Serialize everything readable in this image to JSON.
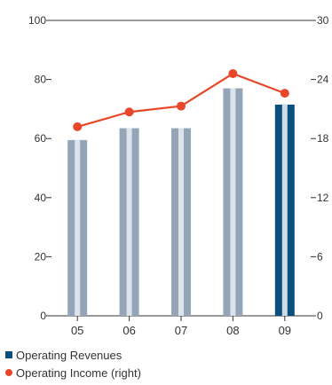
{
  "chart_data": {
    "type": "bar",
    "categories": [
      "05",
      "06",
      "07",
      "08",
      "09"
    ],
    "series": [
      {
        "name": "Operating Revenues",
        "axis": "left",
        "type": "bar",
        "values": [
          59.5,
          63.5,
          63.5,
          77,
          71.5
        ]
      },
      {
        "name": "Operating Income (right)",
        "axis": "right",
        "type": "line",
        "values": [
          19.2,
          20.7,
          21.3,
          24.6,
          22.6
        ]
      }
    ],
    "y_left": {
      "ticks": [
        "0",
        "20",
        "40",
        "60",
        "80",
        "100"
      ],
      "range": [
        0,
        100
      ]
    },
    "y_right": {
      "ticks": [
        "0",
        "6",
        "12",
        "18",
        "24",
        "30"
      ],
      "range": [
        0,
        30
      ]
    },
    "grid": false,
    "legend_placement": "bottom-left",
    "colors": {
      "bar_normal": "#95a5b8",
      "bar_normal_stripe": "#dde3ea",
      "bar_highlight": "#0b4f7c",
      "bar_highlight_stripe": "#cfdbe6",
      "line": "#e8472a",
      "axis": "#333333"
    },
    "highlight_index": 4
  },
  "legend": [
    {
      "label": "Operating Revenues",
      "marker": "square",
      "color": "#0b4f7c"
    },
    {
      "label": "Operating Income (right)",
      "marker": "dot",
      "color": "#e8472a"
    }
  ]
}
